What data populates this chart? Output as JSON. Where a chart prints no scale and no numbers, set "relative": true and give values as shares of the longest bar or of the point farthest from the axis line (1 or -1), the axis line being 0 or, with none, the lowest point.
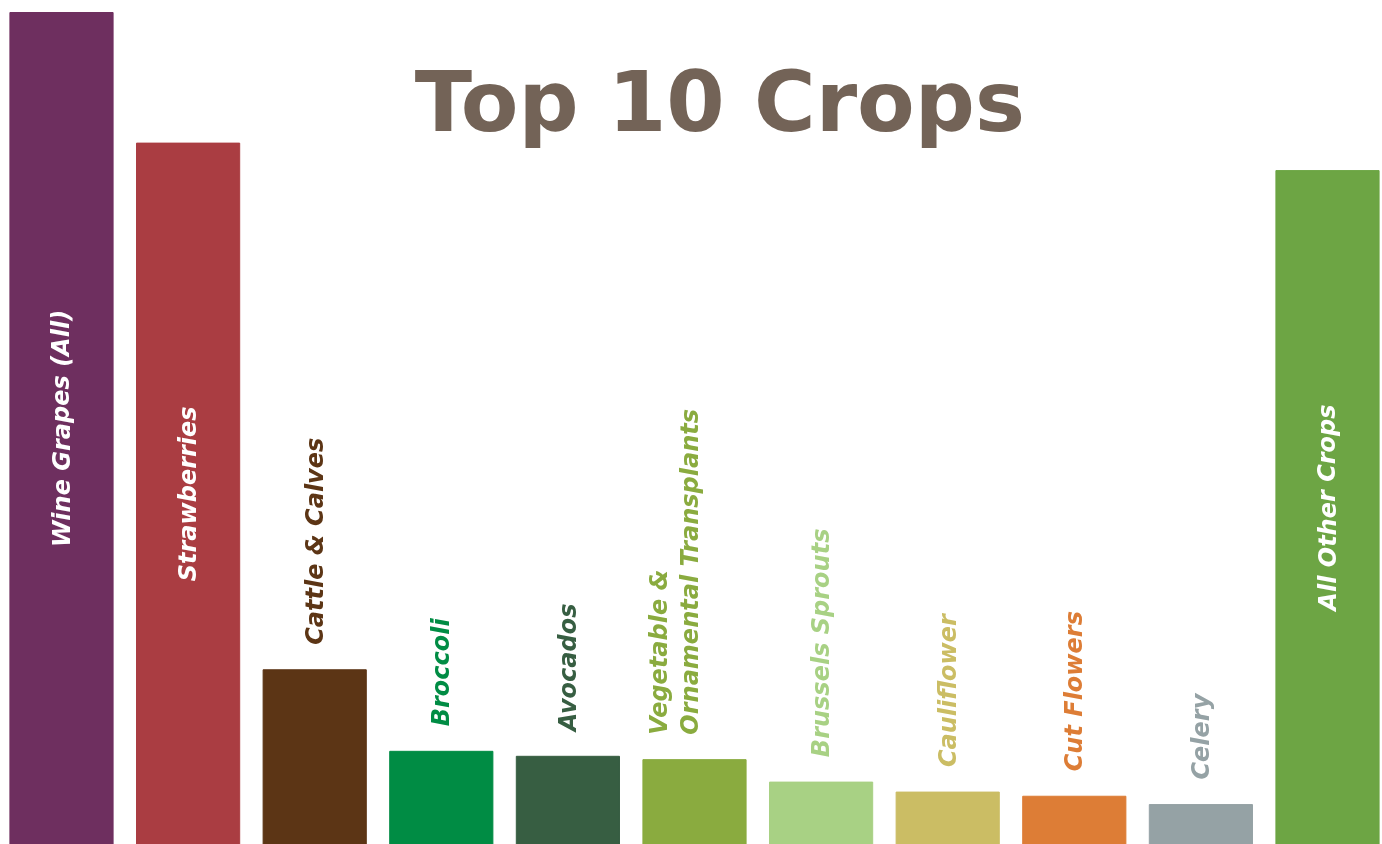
{
  "chart_data": {
    "type": "bar",
    "relative": true,
    "title": "Top 10 Crops",
    "categories": [
      "Wine Grapes (All)",
      "Strawberries",
      "Cattle & Calves",
      "Broccoli",
      "Avocados",
      "Vegetable &\nOrnamental Transplants",
      "Brussels Sprouts",
      "Cauliflower",
      "Cut Flowers",
      "Celery",
      "All Other Crops"
    ],
    "values": [
      1,
      0.843,
      0.21,
      0.112,
      0.106,
      0.102,
      0.075,
      0.063,
      0.058,
      0.048,
      0.81
    ],
    "colors": [
      "#6e2f5f",
      "#aa3d42",
      "#5c3515",
      "#008c44",
      "#375e42",
      "#8aab3f",
      "#a8d184",
      "#cbbd64",
      "#dd7d36",
      "#95a2a5",
      "#6da544"
    ]
  }
}
